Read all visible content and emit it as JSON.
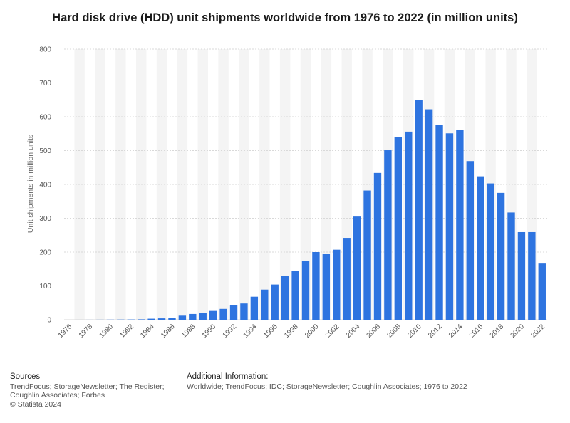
{
  "title": "Hard disk drive (HDD) unit shipments worldwide from 1976 to 2022 (in million units)",
  "footer": {
    "sources_heading": "Sources",
    "sources_text": "TrendFocus; StorageNewsletter; The Register;\nCoughlin Associates; Forbes",
    "copyright": "© Statista 2024",
    "additional_heading": "Additional Information:",
    "additional_text": "Worldwide; TrendFocus; IDC; StorageNewsletter; Coughlin Associates; 1976 to 2022"
  },
  "colors": {
    "bar": "#2e74e0",
    "band": "#f4f4f4",
    "grid": "#d9d9d9",
    "tick": "#555555"
  },
  "chart_data": {
    "type": "bar",
    "title": "Hard disk drive (HDD) unit shipments worldwide from 1976 to 2022 (in million units)",
    "xlabel": "",
    "ylabel": "Unit shipments in million units",
    "ylim": [
      0,
      800
    ],
    "yticks": [
      0,
      100,
      200,
      300,
      400,
      500,
      600,
      700,
      800
    ],
    "grid": true,
    "categories": [
      "1976",
      "1977",
      "1978",
      "1979",
      "1980",
      "1981",
      "1982",
      "1983",
      "1984",
      "1985",
      "1986",
      "1987",
      "1988",
      "1989",
      "1990",
      "1991",
      "1992",
      "1993",
      "1994",
      "1995",
      "1996",
      "1997",
      "1998",
      "1999",
      "2000",
      "2001",
      "2002",
      "2003",
      "2004",
      "2005",
      "2006",
      "2007",
      "2008",
      "2009",
      "2010",
      "2011",
      "2012",
      "2013",
      "2014",
      "2015",
      "2016",
      "2017",
      "2018",
      "2019",
      "2020",
      "2021",
      "2022"
    ],
    "xtick_labels": [
      "1976",
      "1978",
      "1980",
      "1982",
      "1984",
      "1986",
      "1988",
      "1990",
      "1992",
      "1994",
      "1996",
      "1998",
      "2000",
      "2002",
      "2004",
      "2006",
      "2008",
      "2010",
      "2012",
      "2014",
      "2016",
      "2018",
      "2020",
      "2022"
    ],
    "values": [
      0.01,
      0.03,
      0.1,
      0.2,
      0.4,
      0.6,
      0.8,
      1.2,
      3,
      4,
      6,
      12,
      17,
      21,
      26,
      32,
      43,
      48,
      68,
      89,
      104,
      129,
      144,
      174,
      200,
      195,
      207,
      242,
      305,
      382,
      434,
      501,
      540,
      556,
      650,
      622,
      576,
      551,
      562,
      469,
      424,
      403,
      375,
      317,
      259,
      259,
      166
    ]
  }
}
